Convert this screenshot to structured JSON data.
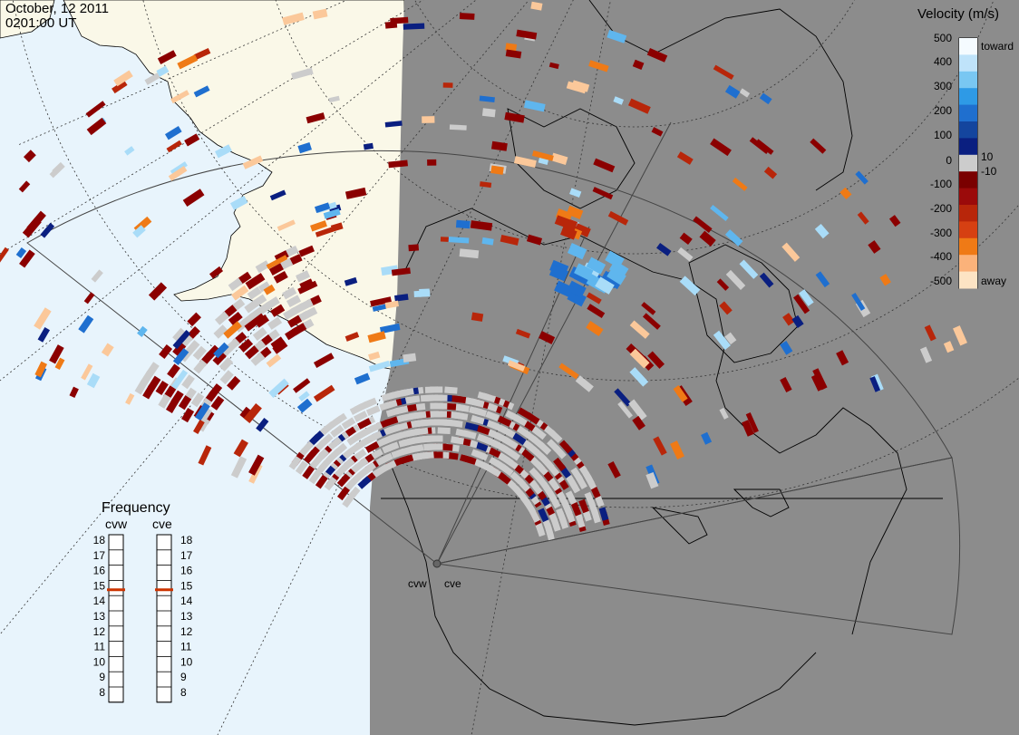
{
  "header": {
    "date": "October, 12 2011",
    "time": "0201:00 UT"
  },
  "colorbar": {
    "title": "Velocity (m/s)",
    "ticks": [
      "500",
      "400",
      "300",
      "200",
      "100",
      "10",
      "0",
      "-10",
      "-100",
      "-200",
      "-300",
      "-400",
      "-500"
    ],
    "toward_label": "toward",
    "away_label": "away",
    "colors": [
      "#f5fbff",
      "#bfe3fa",
      "#79c7f2",
      "#2e9ae6",
      "#1f6fcf",
      "#14459e",
      "#0a1f80",
      "#cccccc",
      "#7a0000",
      "#9b0a0a",
      "#b8260a",
      "#d64012",
      "#ef7a16",
      "#fbb27a",
      "#fde4c4"
    ]
  },
  "frequency": {
    "title": "Frequency",
    "radars": [
      "cvw",
      "cve"
    ],
    "scale": [
      "18",
      "17",
      "16",
      "15",
      "14",
      "13",
      "12",
      "11",
      "10",
      "9",
      "8"
    ],
    "current_mhz": 15,
    "marker_color": "#cc3300"
  },
  "sites": [
    {
      "code": "cvw",
      "label": "cvw"
    },
    {
      "code": "cve",
      "label": "cve"
    }
  ],
  "map": {
    "ocean_color": "#e8f4fc",
    "land_color": "#faf8e8",
    "night_color": "#8c8c8c",
    "gridline_color": "#333333"
  }
}
